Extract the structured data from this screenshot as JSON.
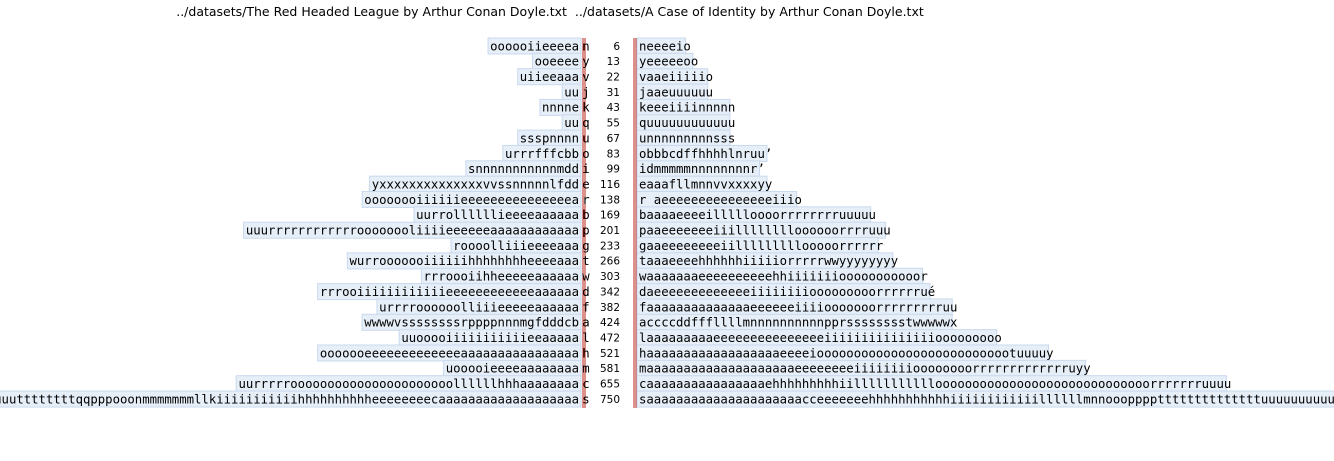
{
  "header": {
    "left_file": "../datasets/The Red Headed League by Arthur Conan Doyle.txt",
    "right_file": "../datasets/A Case of Identity by Arthur Conan Doyle.txt"
  },
  "colors": {
    "divider": "#c0392b",
    "box_fill": "#e6eef8",
    "box_stroke": "#c9d9ee"
  },
  "chart_data": {
    "type": "table",
    "rows": [
      {
        "left": "oooooiieeeea",
        "ch": "n",
        "count": 6,
        "right": "eeeeio"
      },
      {
        "left": "ooeeee",
        "ch": "y",
        "count": 13,
        "right": "eeeeeoo"
      },
      {
        "left": "uiieeaaa",
        "ch": "v",
        "count": 22,
        "right": "aaeiiiiio"
      },
      {
        "left": "uu",
        "ch": "j",
        "count": 31,
        "right": "aaeuuuuuu"
      },
      {
        "left": "nnnne",
        "ch": "k",
        "count": 43,
        "right": "eeeiiiinnnnn"
      },
      {
        "left": "uu",
        "ch": "q",
        "count": 55,
        "right": "uuuuuuuuuuuu"
      },
      {
        "left": "ssspnnnn",
        "ch": "u",
        "count": 67,
        "right": "nnnnnnnnnsss"
      },
      {
        "left": "urrrfffcbb",
        "ch": "o",
        "count": 83,
        "right": "bbbcdffhhhhlnruu’"
      },
      {
        "left": "snnnnnnnnnnnmdd",
        "ch": "i",
        "count": 99,
        "right": "dmmmmmnnnnnnnnr’"
      },
      {
        "left": "yxxxxxxxxxxxxxxvvssnnnnnlfdd",
        "ch": "e",
        "count": 116,
        "right": "aaafllmnnvvxxxxyy"
      },
      {
        "left": "oooooooiiiiiieeeeeeeeeeeeeeea",
        "ch": "r",
        "count": 138,
        "right": " aeeeeeeeeeeeeeeeiiio"
      },
      {
        "left": "uurrollllllieeeeaaaaaa",
        "ch": "b",
        "count": 169,
        "right": "aaaaeeeeillllloooorrrrrrrruuuuu"
      },
      {
        "left": "uuurrrrrrrrrrrroooooooliiiieeeeeeaaaaaaaaaaaa",
        "ch": "p",
        "count": 201,
        "right": "aaeeeeeeeiiilllllllloooooorrrruuu"
      },
      {
        "left": "roooolliiieeeeaaa",
        "ch": "g",
        "count": 233,
        "right": "aaeeeeeeeeiilllllllllooooorrrrrr"
      },
      {
        "left": "wurrooooooiiiiiihhhhhhhheeeeaaa",
        "ch": "t",
        "count": 266,
        "right": "aaaeeeehhhhhhiiiiiorrrrrwwyyyyyyyy"
      },
      {
        "left": "rrroooiihheeeeeaaaaaa",
        "ch": "w",
        "count": 303,
        "right": "aaaaaaaeeeeeeeeeehhiiiiiiiooooooooooor"
      },
      {
        "left": "rrrooiiiiiiiiiiiieeeeeeeeeeeeaaaaaa",
        "ch": "d",
        "count": 342,
        "right": "aeeeeeeeeeeeeeiiiiiiiiooooooooorrrrrrué"
      },
      {
        "left": "urrrroooooolliiieeeeeaaaaaa",
        "ch": "f",
        "count": 382,
        "right": "aaaaaaaaaaaaaaeeeeeeiiiiooooooorrrrrrrrruu"
      },
      {
        "left": "wwwwvssssssssrppppnnnmgfdddcb",
        "ch": "a",
        "count": 424,
        "right": "ccccddfffllllmnnnnnnnnnnpprsssssssstwwwwwx"
      },
      {
        "left": "uuooooiiiiiiiiiiieeaaaaa",
        "ch": "l",
        "count": 472,
        "right": "aaaaaaaaaeeeeeeeeeeeeeeeiiiiiiiiiiiiiiiooooooooo"
      },
      {
        "left": "ooooooeeeeeeeeeeeeeaaaaaaaaaaaaaaaa",
        "ch": "h",
        "count": 521,
        "right": "aaaaaaaaaaaaaaaaaaeeeeiooooooooooooooooooooooooootuuuuy"
      },
      {
        "left": "uooooieeeeaaaaaaaa",
        "ch": "m",
        "count": 581,
        "right": "aaaaaaaaaaaaaaaaaaaaeeeeeeeeiiiiiiiioooooooorrrrrrrrrrrrruyy"
      },
      {
        "left": "uurrrrroooooooooooooooooooooollllllhhhaaaaaaaa",
        "ch": "c",
        "count": 655,
        "right": "aaaaaaaaaaaaaaaaehhhhhhhhhiilllllllllllooooooooooooooooooooooooooooorrrrrrruuuu"
      },
      {
        "left": "wuuuuuttttttttqqpppooonmmmmmmmllkiiiiiiiiiiihhhhhhhhhheeeeeeeecaaaaaaaaaaaaaaaaaaa",
        "ch": "s",
        "count": 750,
        "right": "aaaaaaaaaaaaaaaaaaaaacceeeeeeehhhhhhhhhhhiiiiiiiiiiiillllllmnnoooppppttttttttttttttuuuuuuuuuuuyy’"
      }
    ]
  }
}
